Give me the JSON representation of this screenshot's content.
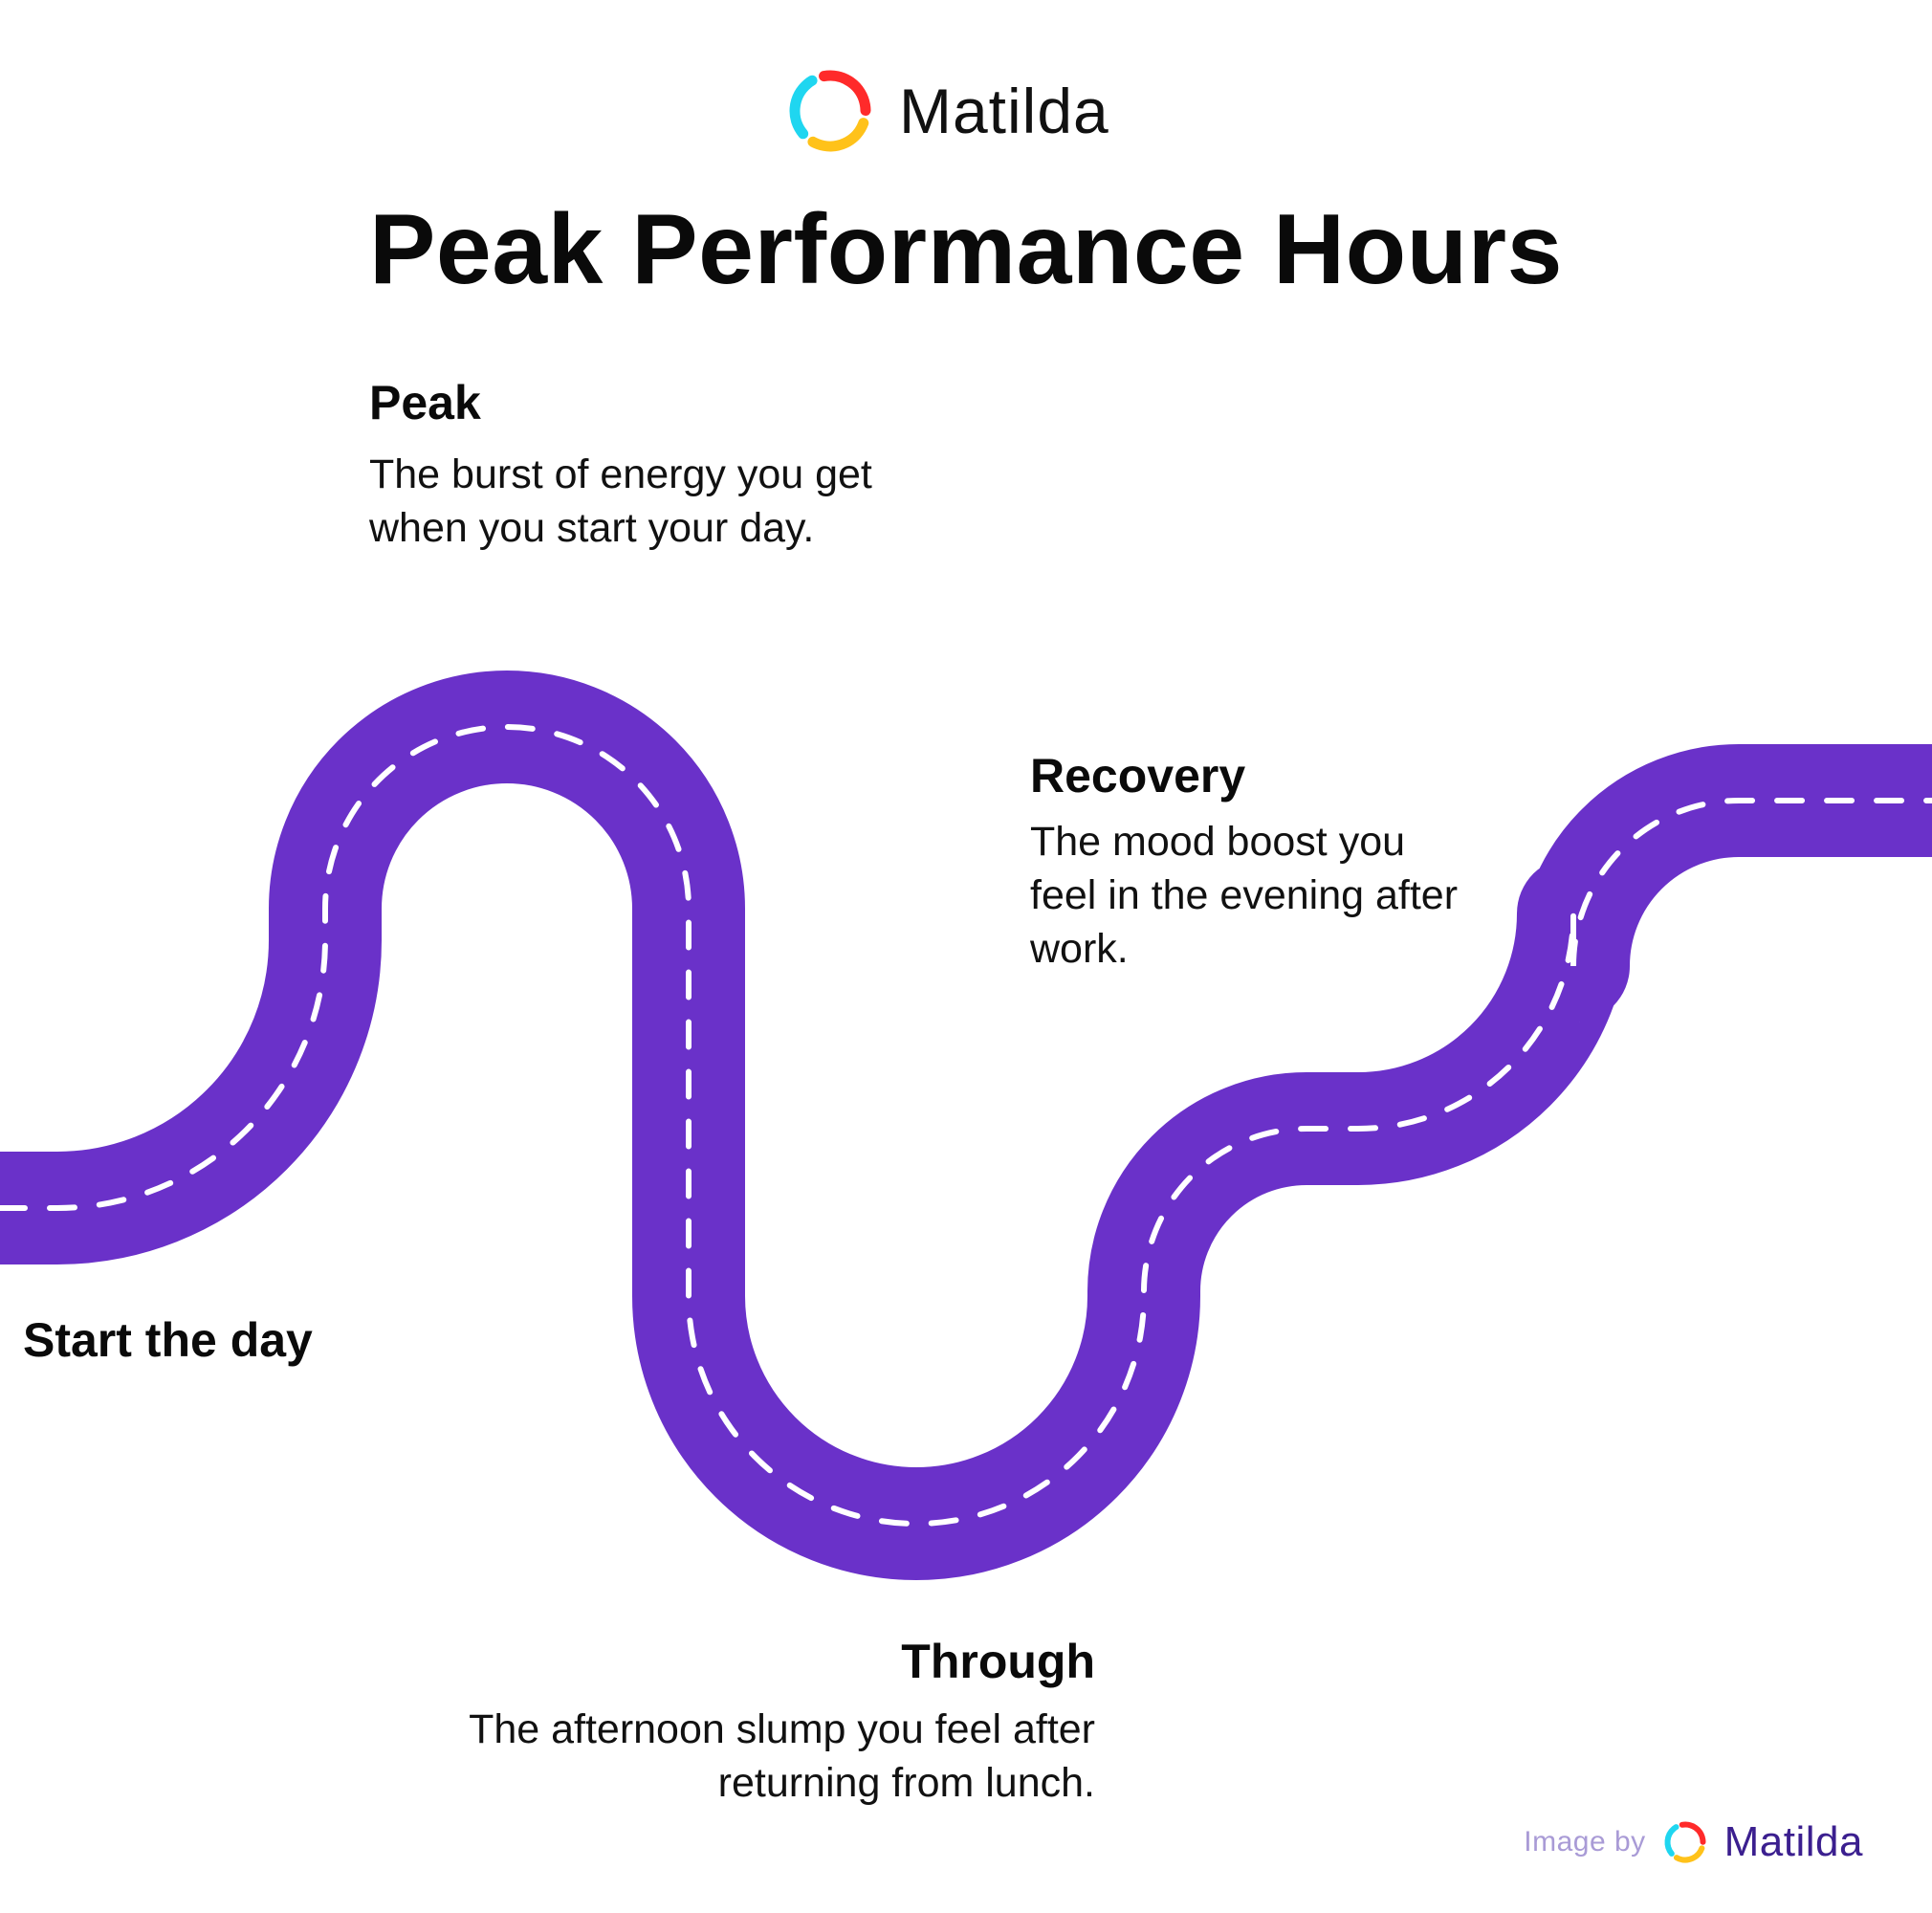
{
  "brand": {
    "name": "Matilda",
    "logo_icon": "matilda-ring-logo",
    "logo_colors": [
      "#ff2a2a",
      "#ffc21a",
      "#1fd6f0"
    ]
  },
  "title": "Peak Performance Hours",
  "road": {
    "color": "#6a31c9",
    "dash_color": "#ffffff"
  },
  "stages": {
    "start": {
      "title": "Start the day"
    },
    "peak": {
      "title": "Peak",
      "desc": "The burst of energy you get when you start your day."
    },
    "through": {
      "title": "Through",
      "desc": "The afternoon slump you feel after returning from lunch."
    },
    "recovery": {
      "title": "Recovery",
      "desc": "The mood boost you feel in the evening after work."
    }
  },
  "credit": {
    "label": "Image by",
    "name": "Matilda"
  }
}
